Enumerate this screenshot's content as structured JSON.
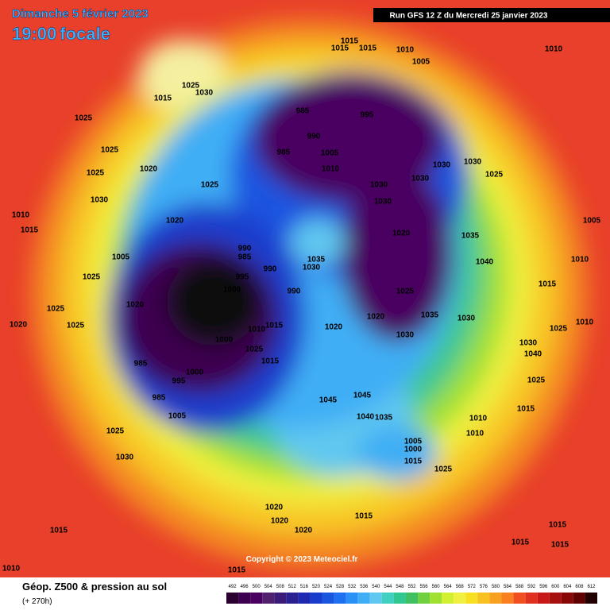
{
  "header": {
    "date": "Dimanche 5 février 2023",
    "time": "19:00",
    "subtitle": "focale",
    "run": "Run GFS 12 Z du Mercredi 25 janvier 2023"
  },
  "footer": {
    "title": "Géop. Z500 & pression au sol",
    "lead": "(+ 270h)",
    "copyright": "Copyright © 2023 Meteociel.fr"
  },
  "colorbar": {
    "ticks": [
      492,
      496,
      500,
      504,
      508,
      512,
      516,
      520,
      524,
      528,
      532,
      536,
      540,
      544,
      548,
      552,
      556,
      560,
      564,
      568,
      572,
      576,
      580,
      584,
      588,
      592,
      596,
      600,
      604,
      608,
      612
    ],
    "colors": [
      "#2a0030",
      "#3d0050",
      "#4a0060",
      "#50206e",
      "#3c1a7a",
      "#2a2090",
      "#1e28b0",
      "#1a3ccc",
      "#1a55e0",
      "#1e70f0",
      "#2a90f5",
      "#40aef5",
      "#60c8f0",
      "#40d0c0",
      "#30c890",
      "#40c060",
      "#70d040",
      "#a0e030",
      "#d0f030",
      "#f0f040",
      "#f8e020",
      "#f8c020",
      "#f8a020",
      "#f88020",
      "#f05020",
      "#e03020",
      "#c81818",
      "#a81010",
      "#880808",
      "#600000",
      "#200000"
    ]
  },
  "isobar_labels": [
    1015,
    1015,
    1015,
    1010,
    1005,
    1010,
    1025,
    1030,
    1015,
    1025,
    985,
    995,
    990,
    985,
    1005,
    1010,
    1025,
    1025,
    1020,
    1025,
    1030,
    1030,
    1030,
    1025,
    1030,
    1030,
    1030,
    1010,
    1020,
    1015,
    1020,
    1035,
    1005,
    1005,
    990,
    985,
    1035,
    1030,
    1040,
    1010,
    1025,
    995,
    990,
    990,
    1000,
    1015,
    1025,
    1020,
    1025,
    1020,
    1035,
    1030,
    1010,
    1020,
    1025,
    1015,
    1020,
    1010,
    1025,
    1030,
    1000,
    1025,
    1030,
    1040,
    985,
    1000,
    1015,
    995,
    1025,
    985,
    1045,
    1045,
    1010,
    1005,
    1040,
    1035,
    1015,
    1010,
    1005,
    1000,
    1025,
    1015,
    1030,
    1025,
    1020,
    1020,
    1020,
    1015,
    1015,
    1015,
    1015,
    1015,
    1015,
    1010
  ]
}
